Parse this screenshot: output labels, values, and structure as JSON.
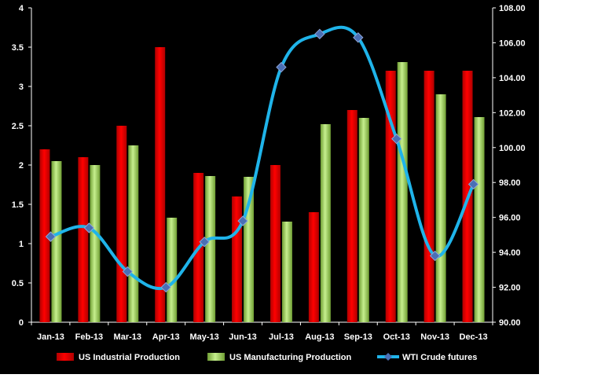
{
  "chart_data": {
    "type": "bar",
    "categories": [
      "Jan-13",
      "Feb-13",
      "Mar-13",
      "Apr-13",
      "May-13",
      "Jun-13",
      "Jul-13",
      "Aug-13",
      "Sep-13",
      "Oct-13",
      "Nov-13",
      "Dec-13"
    ],
    "series": [
      {
        "name": "US Industrial Production",
        "type": "bar",
        "axis": "left",
        "color": "#ff0000",
        "values": [
          2.2,
          2.1,
          2.5,
          3.5,
          1.9,
          1.6,
          2.0,
          1.4,
          2.7,
          3.2,
          3.2,
          3.2
        ]
      },
      {
        "name": "US Manufacturing  Production",
        "type": "bar",
        "axis": "left",
        "color": "#92d050",
        "values": [
          2.05,
          2.0,
          2.25,
          1.33,
          1.86,
          1.85,
          1.28,
          2.52,
          2.6,
          3.31,
          2.9,
          2.61
        ]
      },
      {
        "name": "WTI Crude futures",
        "type": "line",
        "axis": "right",
        "color": "#1fb4ea",
        "marker_color": "#4a6fb5",
        "values": [
          94.9,
          95.4,
          92.9,
          92.0,
          94.6,
          95.8,
          104.6,
          106.5,
          106.3,
          100.5,
          93.8,
          97.9
        ]
      }
    ],
    "y_left": {
      "min": 0,
      "max": 4,
      "ticks": [
        "0",
        "0.5",
        "1",
        "1.5",
        "2",
        "2.5",
        "3",
        "3.5",
        "4"
      ]
    },
    "y_right": {
      "min": 90,
      "max": 108,
      "ticks": [
        "90.00",
        "92.00",
        "94.00",
        "96.00",
        "98.00",
        "100.00",
        "102.00",
        "104.00",
        "106.00",
        "108.00"
      ]
    },
    "legend_position": "bottom",
    "grid": false,
    "background": "#000000"
  }
}
